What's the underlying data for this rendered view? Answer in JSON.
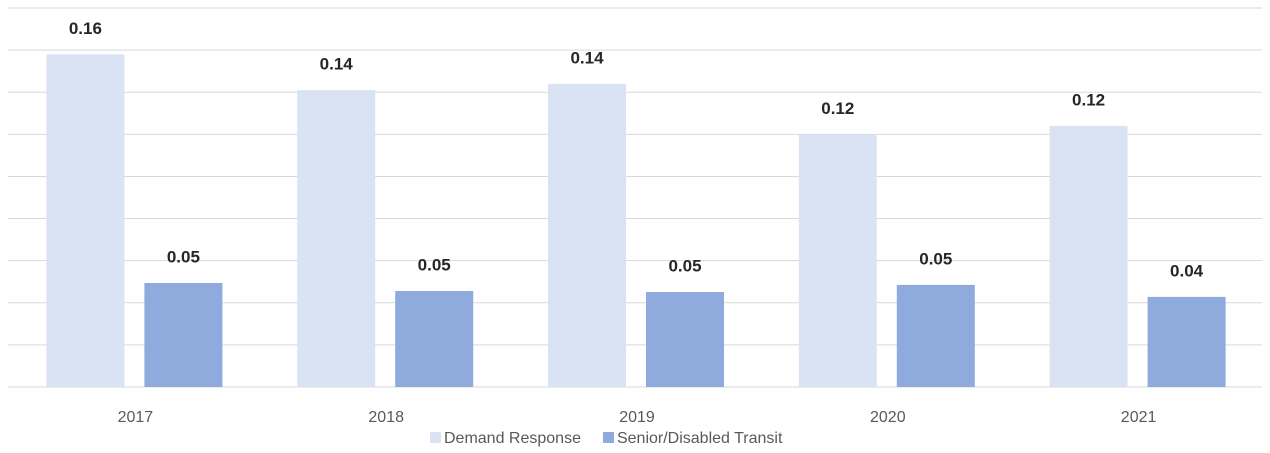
{
  "chart_data": {
    "type": "bar",
    "categories": [
      "2017",
      "2018",
      "2019",
      "2020",
      "2021"
    ],
    "series": [
      {
        "name": "Demand Response",
        "color": "#dae3f3",
        "values": [
          0.158,
          0.141,
          0.144,
          0.12,
          0.124
        ],
        "value_labels": [
          "0.16",
          "0.14",
          "0.14",
          "0.12",
          "0.12"
        ]
      },
      {
        "name": "Senior/Disabled Transit",
        "color": "#8faadc",
        "values": [
          0.0494,
          0.0456,
          0.0451,
          0.0485,
          0.0428
        ],
        "value_labels": [
          "0.05",
          "0.05",
          "0.05",
          "0.05",
          "0.04"
        ]
      }
    ],
    "ylim": [
      0,
      0.18
    ],
    "yticks": [
      0,
      0.02,
      0.04,
      0.06,
      0.08,
      0.1,
      0.12,
      0.14,
      0.16,
      0.18
    ],
    "grid": true,
    "legend": "bottom"
  }
}
